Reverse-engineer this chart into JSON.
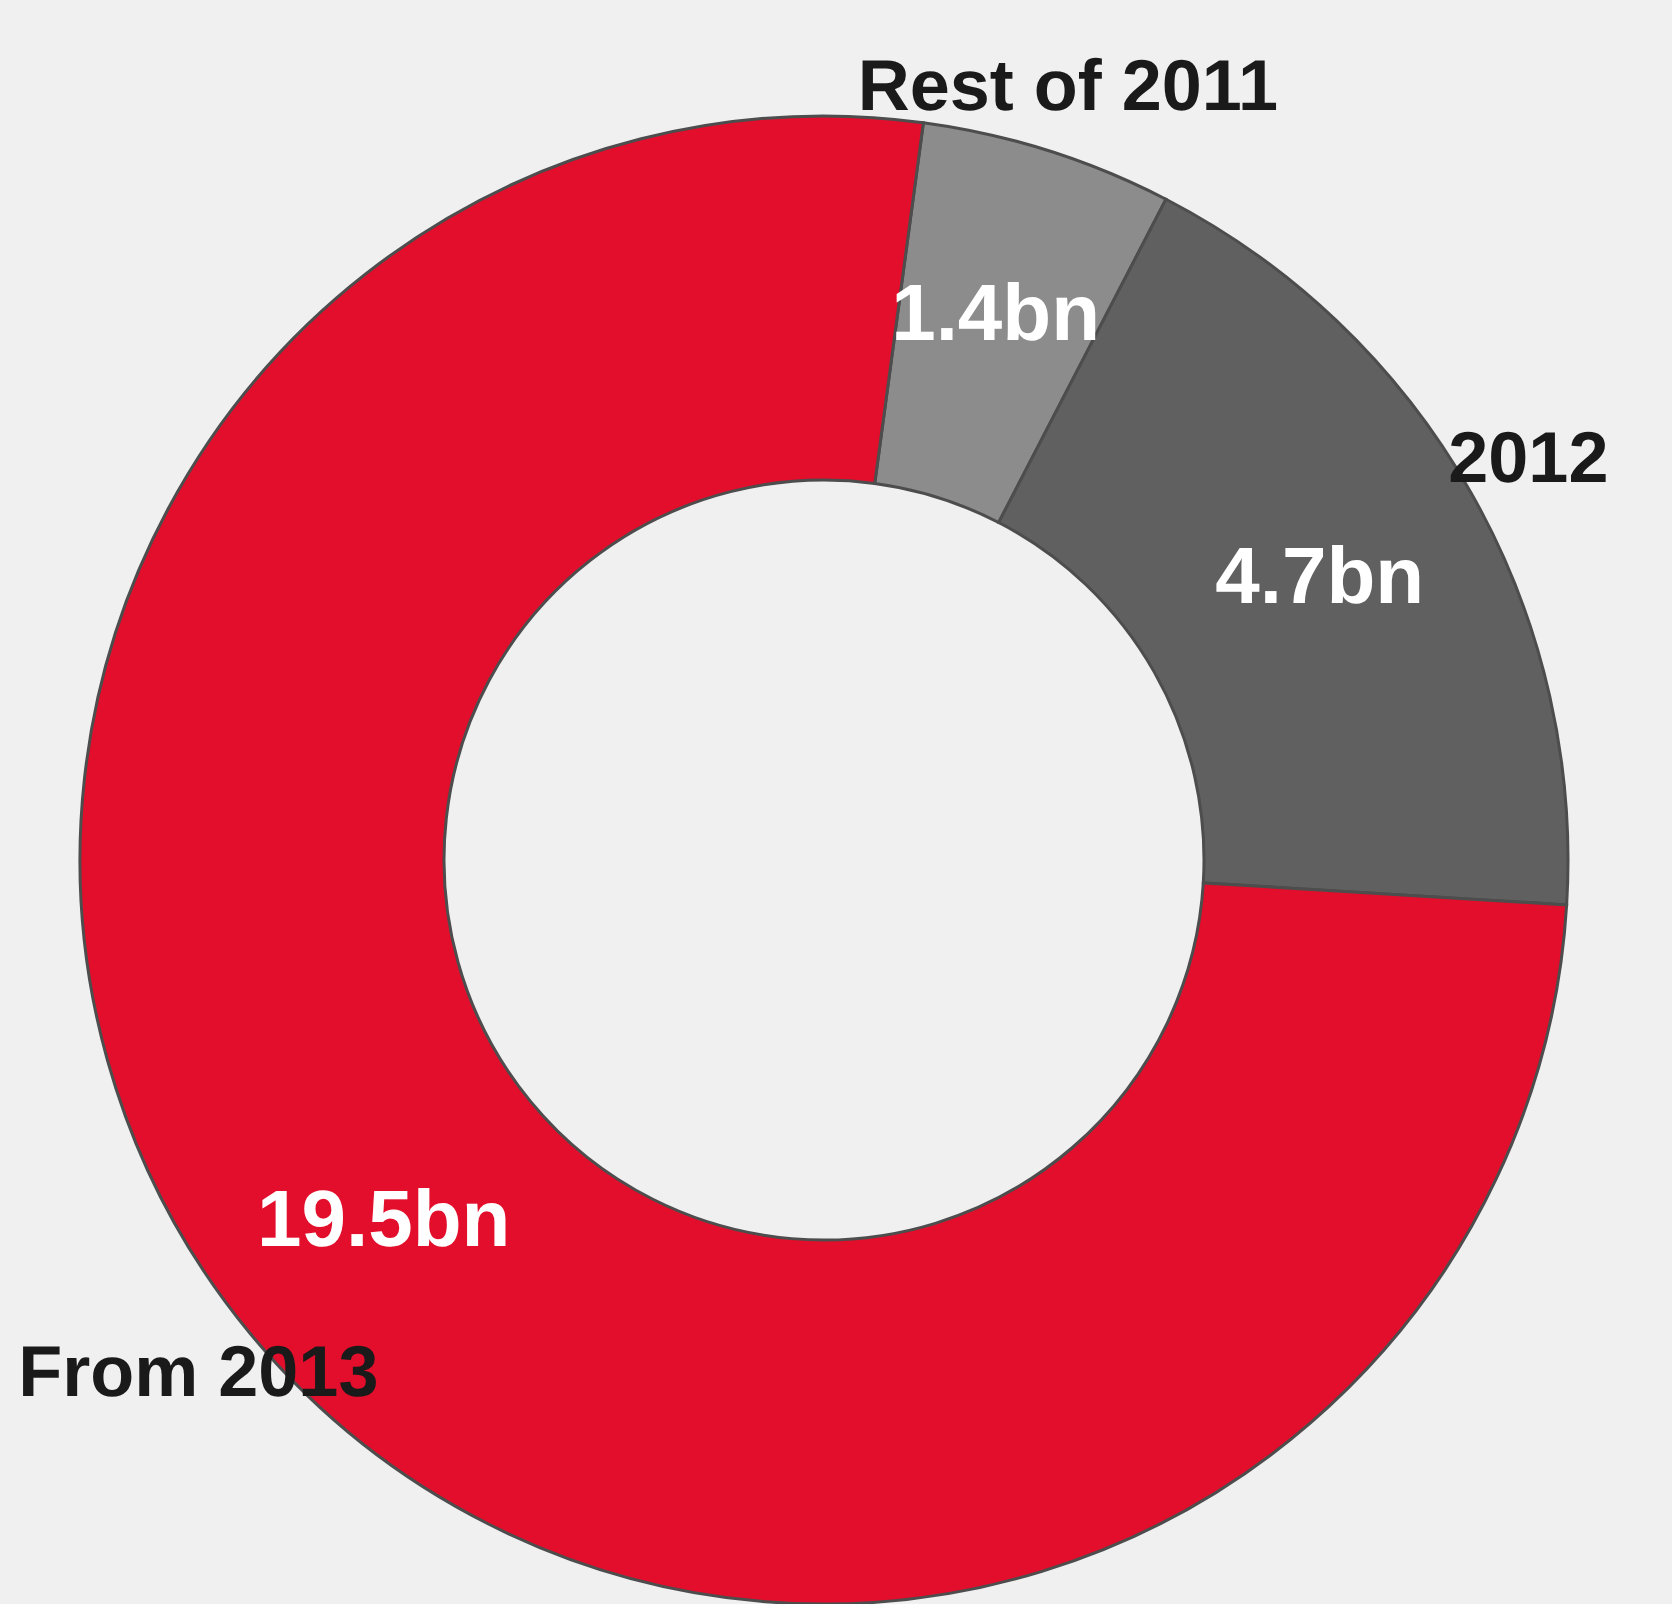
{
  "chart_data": {
    "type": "donut",
    "categories": [
      "Rest of 2011",
      "2012",
      "From 2013"
    ],
    "values": [
      1.4,
      4.7,
      19.5
    ],
    "colors": [
      "#8c8c8c",
      "#606060",
      "#e30e2b"
    ],
    "value_labels": [
      "1.4bn",
      "4.7bn",
      "19.5bn"
    ]
  }
}
